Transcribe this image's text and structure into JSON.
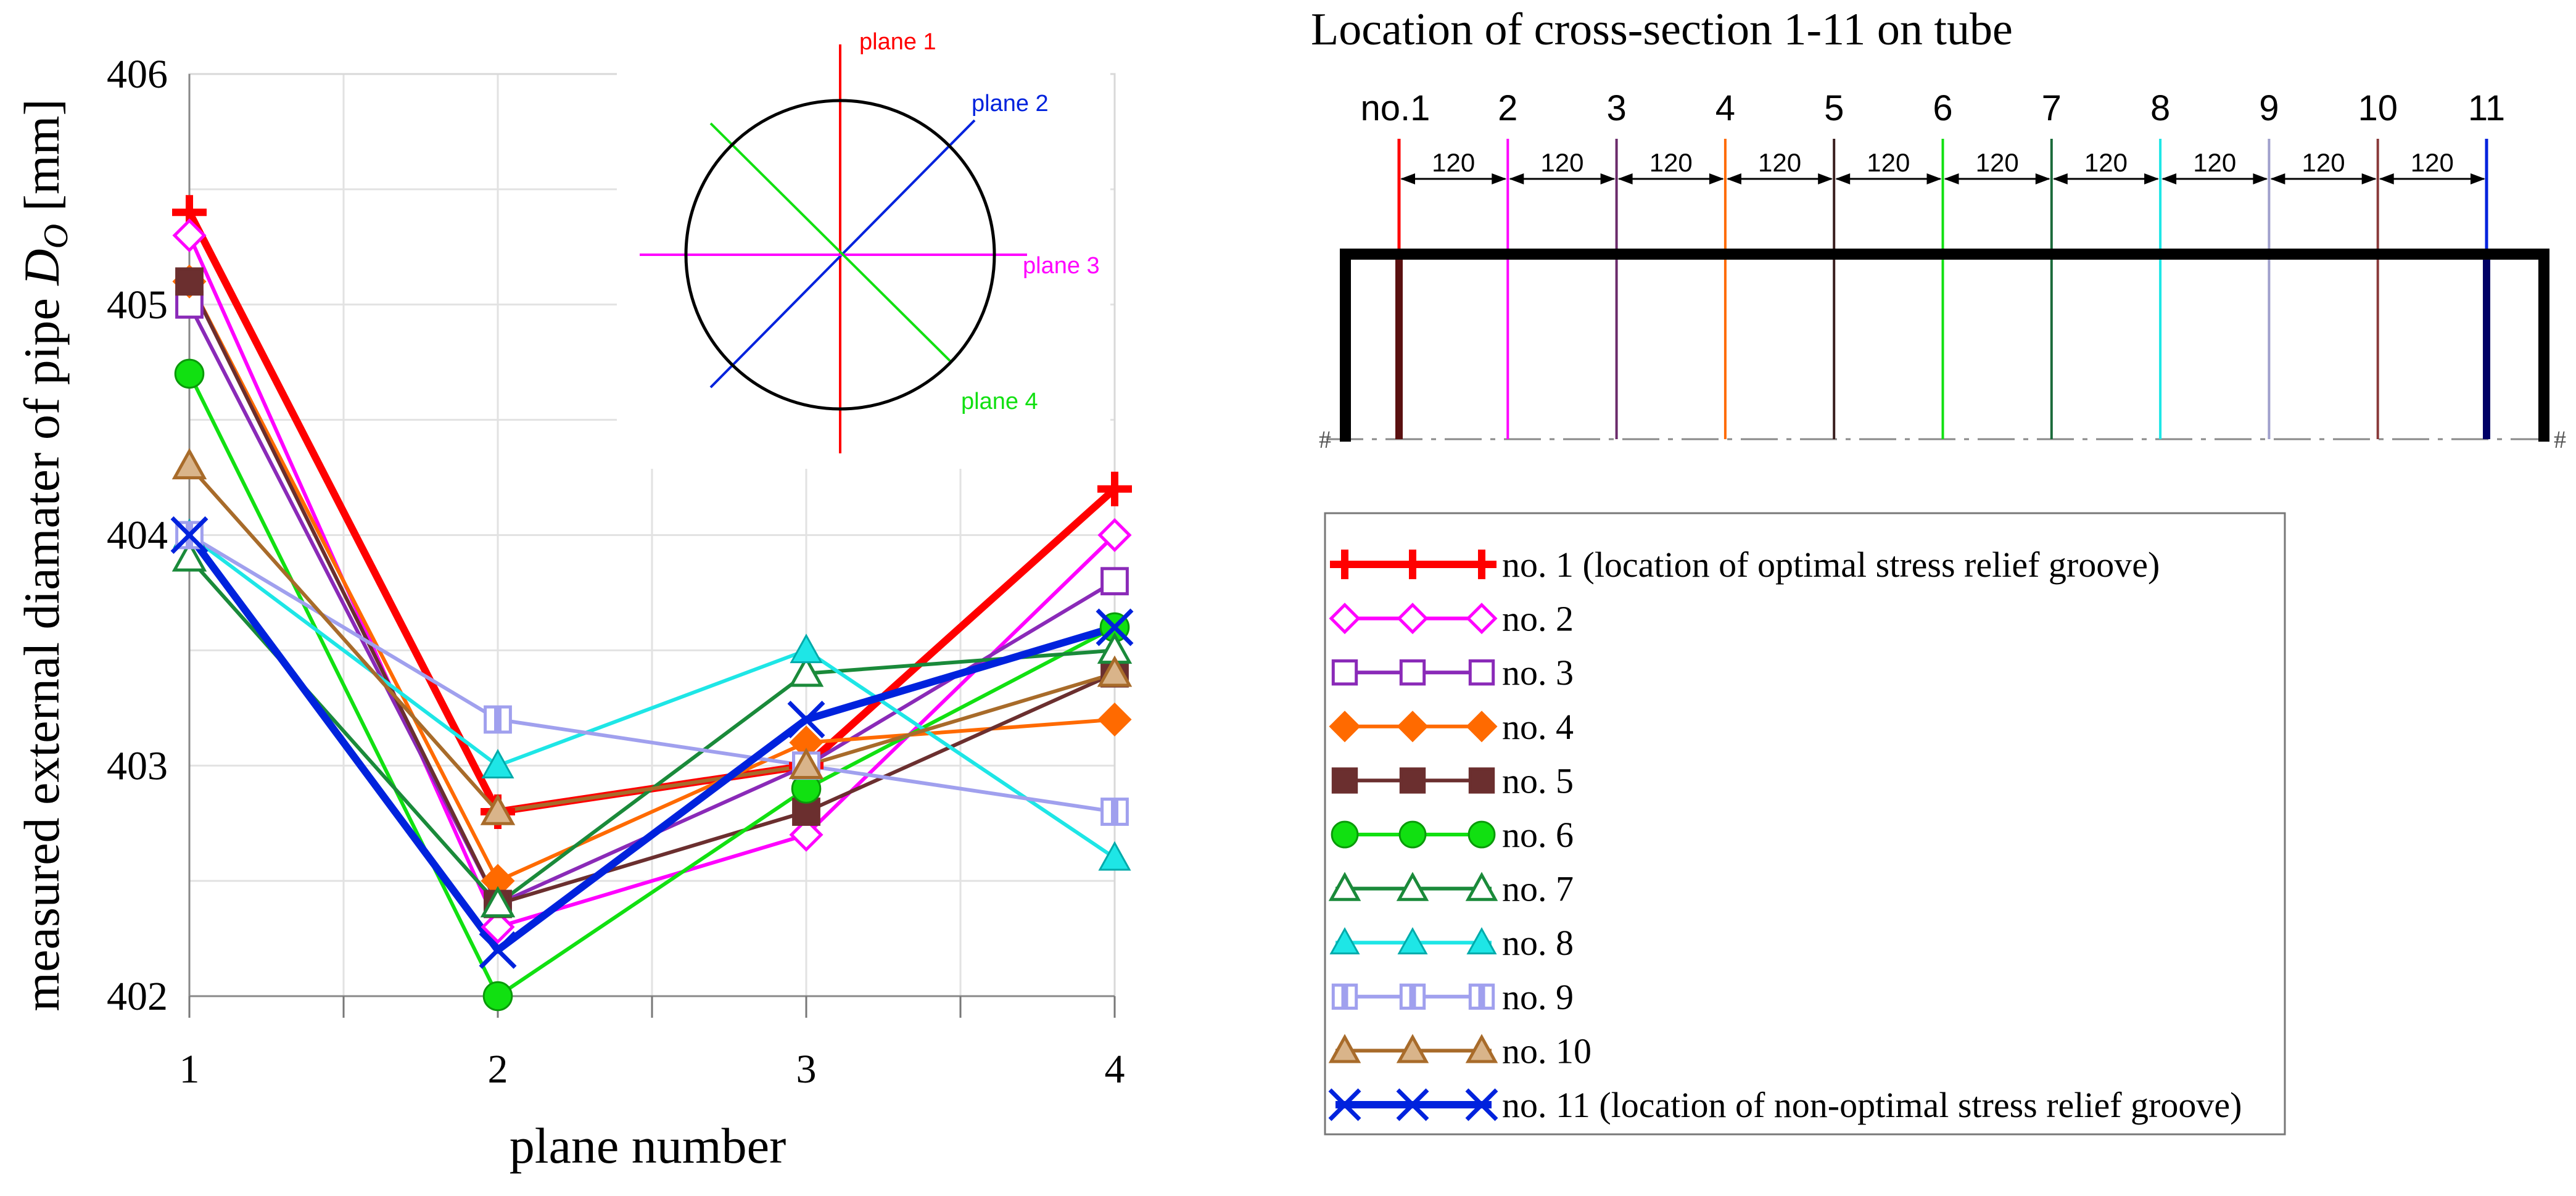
{
  "chart_data": {
    "type": "line",
    "xlabel": "plane number",
    "ylabel": "measured external diamater of pipe ",
    "ylabel_symbol": "D",
    "ylabel_subscript": "O",
    "ylabel_unit": " [mm]",
    "x": [
      1,
      2,
      3,
      4
    ],
    "x_ticks": [
      "1",
      "2",
      "3",
      "4"
    ],
    "y_ticks": [
      "402",
      "403",
      "404",
      "405",
      "406"
    ],
    "ylim": [
      402,
      406
    ],
    "xlim": [
      1,
      4
    ],
    "grid": true,
    "series": [
      {
        "name": "no. 1 (location of optimal stress relief groove)",
        "color": "#ff0000",
        "marker": "plus",
        "values": [
          405.4,
          402.8,
          403.0,
          404.2
        ]
      },
      {
        "name": "no. 2",
        "color": "#ff00ff",
        "marker": "diamond-open",
        "values": [
          405.3,
          402.3,
          402.7,
          404.0
        ]
      },
      {
        "name": "no. 3",
        "color": "#8a2ab8",
        "marker": "square-open",
        "values": [
          405.0,
          402.4,
          403.0,
          403.8
        ]
      },
      {
        "name": "no. 4",
        "color": "#ff6a00",
        "marker": "diamond",
        "values": [
          405.1,
          402.5,
          403.1,
          403.2
        ]
      },
      {
        "name": "no. 5",
        "color": "#6b2f2f",
        "marker": "square",
        "values": [
          405.1,
          402.4,
          402.8,
          403.4
        ]
      },
      {
        "name": "no. 6",
        "color": "#11e011",
        "marker": "circle",
        "values": [
          404.7,
          402.0,
          402.9,
          403.6
        ]
      },
      {
        "name": "no. 7",
        "color": "#1a8a3a",
        "marker": "triangle-open",
        "values": [
          403.9,
          402.4,
          403.4,
          403.5
        ]
      },
      {
        "name": "no. 8",
        "color": "#1ee6e6",
        "marker": "triangle",
        "values": [
          404.0,
          403.0,
          403.5,
          402.6
        ]
      },
      {
        "name": "no. 9",
        "color": "#a0a0ee",
        "marker": "halfsquare",
        "values": [
          404.0,
          403.2,
          403.0,
          402.8
        ]
      },
      {
        "name": "no. 10",
        "color": "#a86b2a",
        "marker": "triangle-tan",
        "values": [
          404.3,
          402.8,
          403.0,
          403.4
        ]
      },
      {
        "name": "no. 11 (location of non-optimal stress relief groove)",
        "color": "#0022dd",
        "marker": "x",
        "values": [
          404.0,
          402.2,
          403.2,
          403.6
        ]
      }
    ]
  },
  "inset": {
    "planes": [
      {
        "label": "plane 1",
        "color": "#ff0000"
      },
      {
        "label": "plane 2",
        "color": "#0022dd"
      },
      {
        "label": "plane 3",
        "color": "#ff00ff"
      },
      {
        "label": "plane 4",
        "color": "#11e011"
      }
    ]
  },
  "tube": {
    "title": "Location of cross-section 1-11 on tube",
    "spacing_label": "120",
    "sections": [
      {
        "label": "no.1",
        "color": "#ff0000"
      },
      {
        "label": "2",
        "color": "#ff00ff"
      },
      {
        "label": "3",
        "color": "#6a2a6a"
      },
      {
        "label": "4",
        "color": "#ff6a00"
      },
      {
        "label": "5",
        "color": "#3a1f1f"
      },
      {
        "label": "6",
        "color": "#11e011"
      },
      {
        "label": "7",
        "color": "#1a6a3a"
      },
      {
        "label": "8",
        "color": "#1ee6e6"
      },
      {
        "label": "9",
        "color": "#a0a0cc"
      },
      {
        "label": "10",
        "color": "#8a3a3a"
      },
      {
        "label": "11",
        "color": "#0022dd"
      }
    ]
  }
}
